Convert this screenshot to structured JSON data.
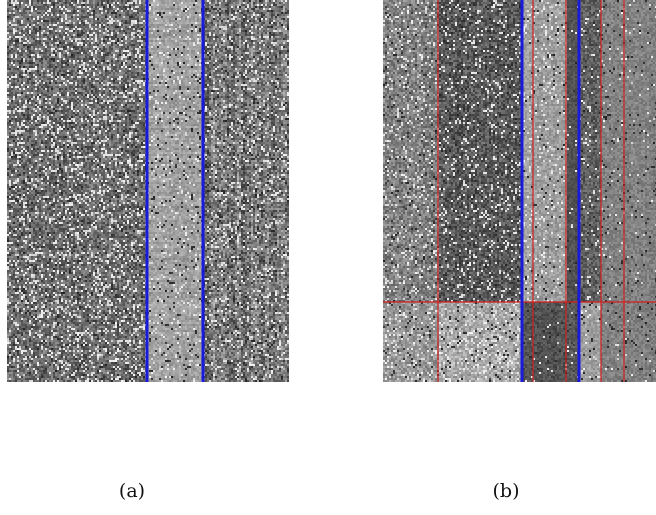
{
  "captions": {
    "a": "(a)",
    "b": "(b)"
  },
  "colors": {
    "background": "#ffffff",
    "blue_line": "#1a1adc",
    "red_line": "#d21e1e",
    "dark_noise": "#5a5a5a",
    "light_noise": "#9a9a9a"
  },
  "panels": {
    "a": {
      "name": "noise-matrix-unsegmented",
      "blue_lines": 2,
      "red_lines": 0
    },
    "b": {
      "name": "noise-matrix-segmented",
      "blue_lines": 2,
      "red_vertical_lines": 5,
      "red_horizontal_lines": 1
    }
  }
}
